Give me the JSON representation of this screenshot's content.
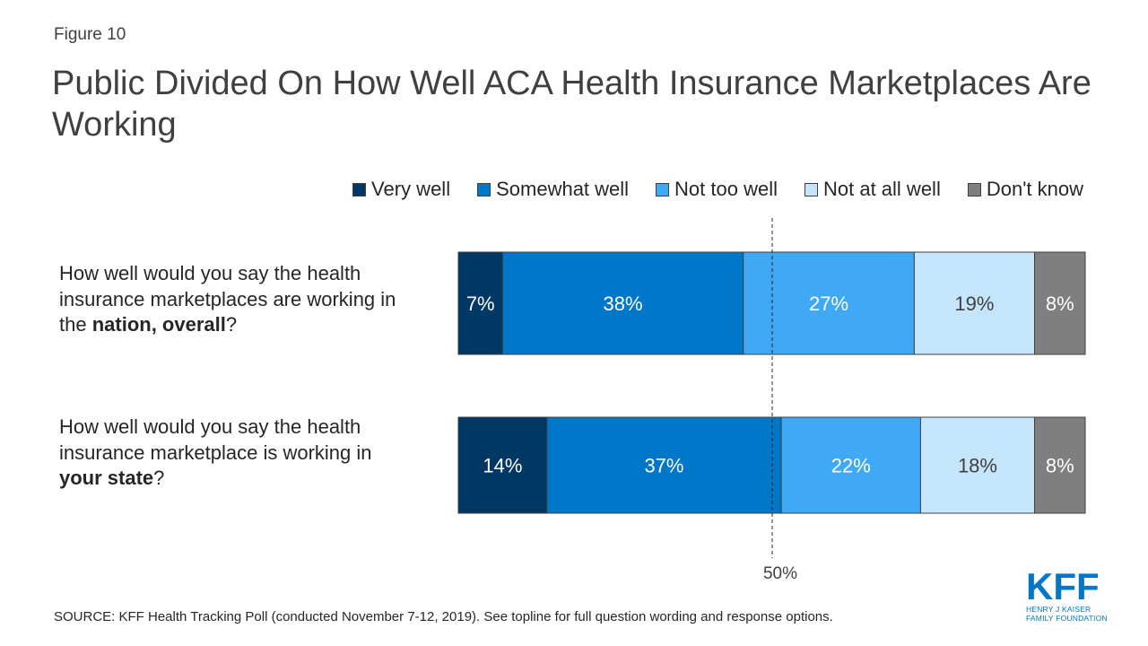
{
  "figure_label": "Figure 10",
  "title": "Public Divided On How Well ACA Health Insurance Marketplaces Are Working",
  "source": "SOURCE: KFF Health Tracking Poll (conducted November 7-12, 2019). See topline for full question wording and response options.",
  "logo": {
    "mark": "KFF",
    "line1": "HENRY J KAISER",
    "line2": "FAMILY FOUNDATION"
  },
  "questions": [
    {
      "pre": "How well would you say the health insurance marketplaces are working in the ",
      "bold": "nation, overall",
      "post": "?"
    },
    {
      "pre": "How well would you say the health insurance marketplace is working in ",
      "bold": "your state",
      "post": "?"
    }
  ],
  "chart_data": {
    "type": "bar",
    "orientation": "horizontal-stacked",
    "categories": [
      "nation, overall",
      "your state"
    ],
    "series": [
      {
        "name": "Very well",
        "color": "#003865",
        "values": [
          7,
          14
        ]
      },
      {
        "name": "Somewhat well",
        "color": "#0077c8",
        "values": [
          38,
          37
        ]
      },
      {
        "name": "Not too well",
        "color": "#3fa9f5",
        "values": [
          27,
          22
        ]
      },
      {
        "name": "Not at all well",
        "color": "#c5e5fb",
        "values": [
          19,
          18
        ]
      },
      {
        "name": "Don't know",
        "color": "#7f7f7f",
        "values": [
          8,
          8
        ]
      }
    ],
    "data_labels": [
      [
        "7%",
        "38%",
        "27%",
        "19%",
        "8%"
      ],
      [
        "14%",
        "37%",
        "22%",
        "18%",
        "8%"
      ]
    ],
    "reference_line": {
      "value": 50,
      "label": "50%"
    },
    "legend_position": "top-right",
    "xlim": [
      0,
      100
    ]
  }
}
